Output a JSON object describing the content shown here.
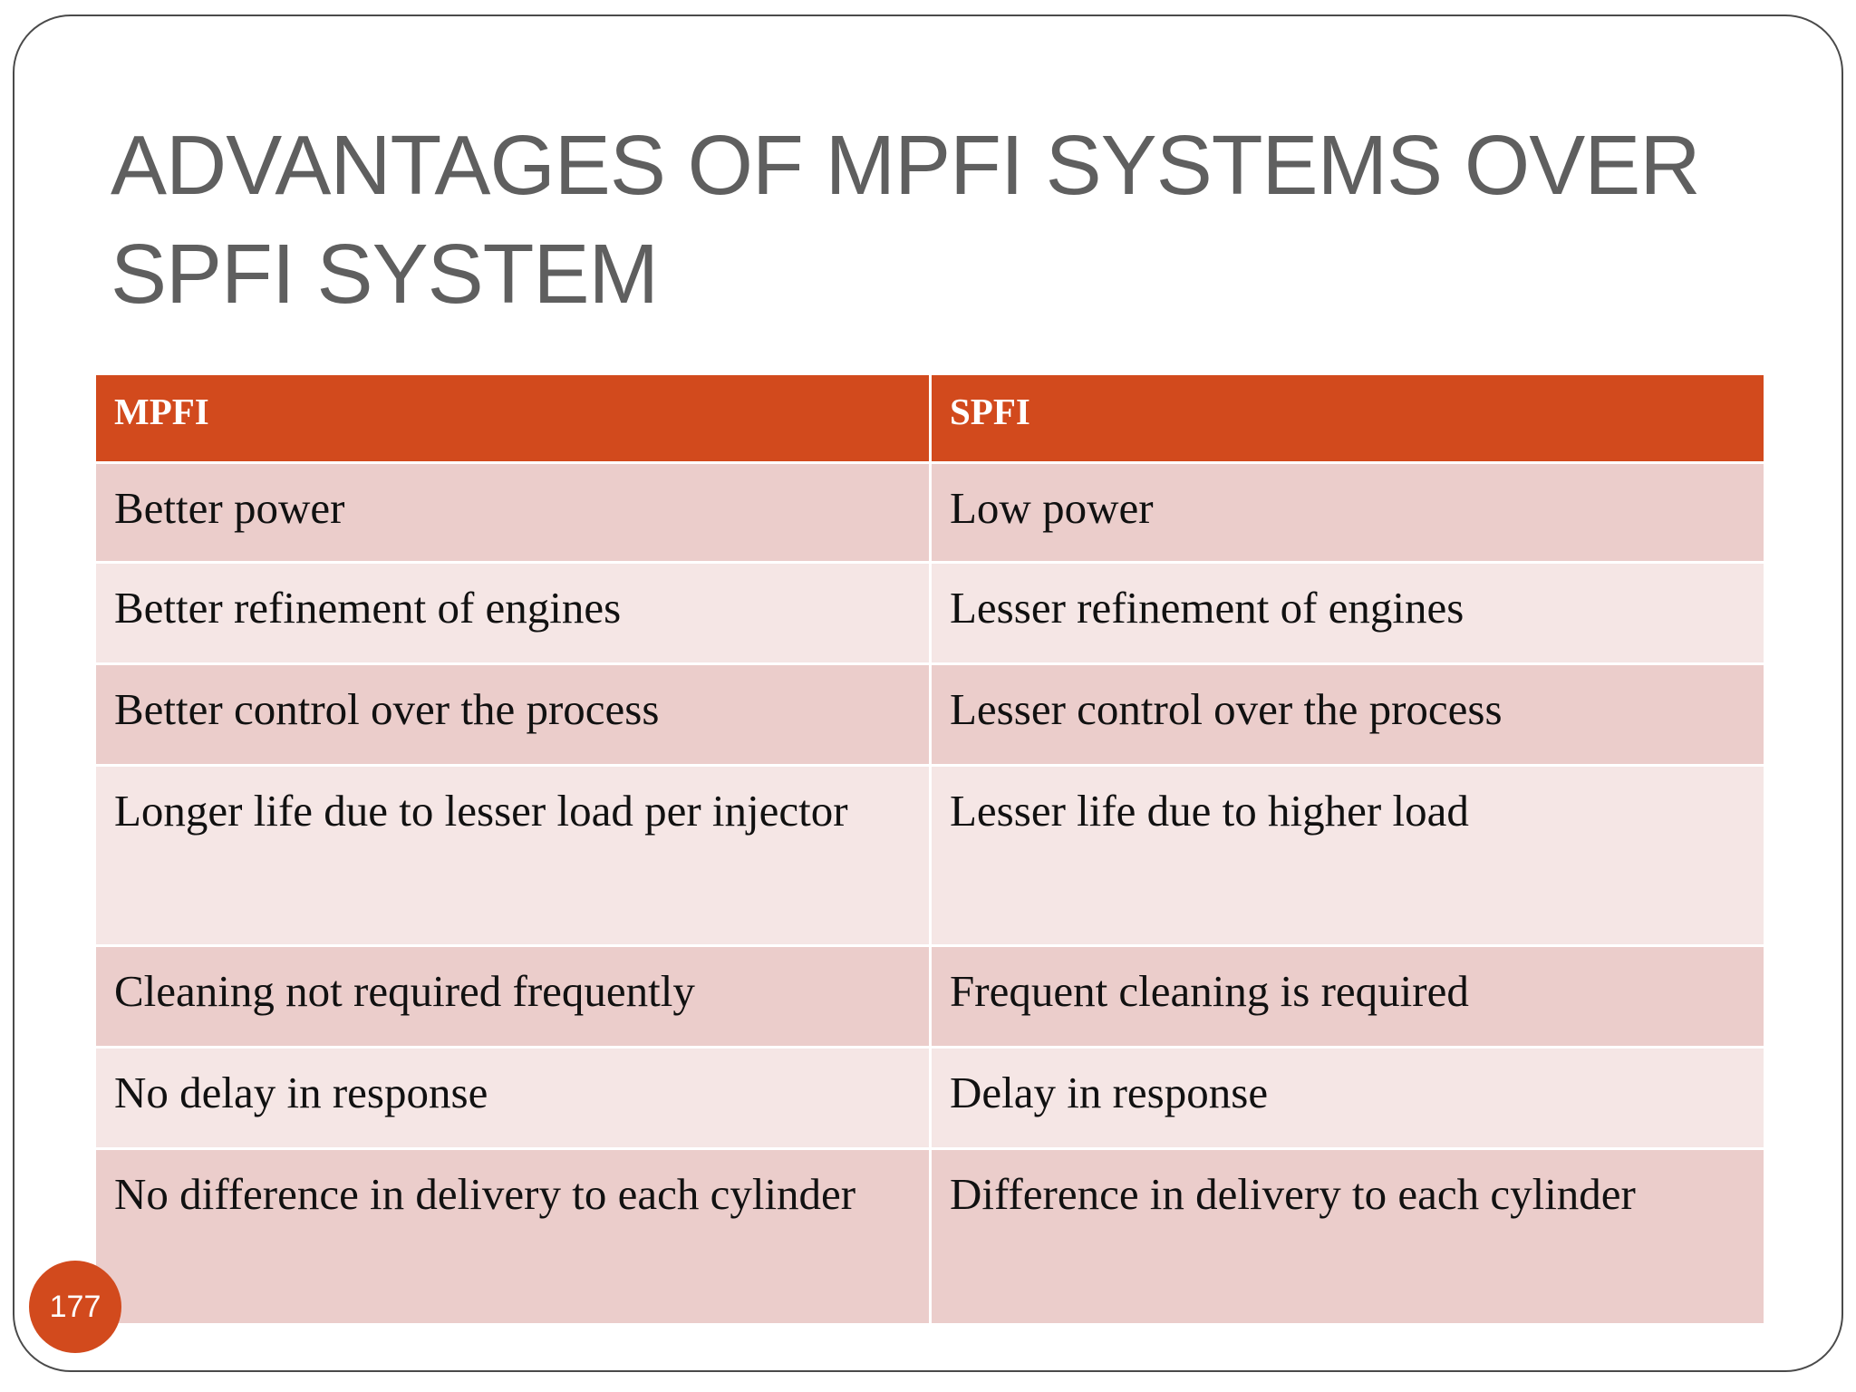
{
  "slide": {
    "title": "ADVANTAGES OF MPFI SYSTEMS OVER SPFI SYSTEM",
    "page_number": "177"
  },
  "table": {
    "headers": [
      "MPFI",
      "SPFI"
    ],
    "rows": [
      [
        "Better power",
        "Low power"
      ],
      [
        "Better refinement of engines",
        "Lesser refinement of engines"
      ],
      [
        "Better control over the process",
        "Lesser control over the process"
      ],
      [
        "Longer life due to lesser load per injector",
        "Lesser life due to higher load"
      ],
      [
        "Cleaning not required frequently",
        "Frequent cleaning is required"
      ],
      [
        "No delay in response",
        "Delay in response"
      ],
      [
        "No difference in delivery to each cylinder",
        "Difference in delivery to each cylinder"
      ]
    ]
  },
  "colors": {
    "accent": "#d24a1d",
    "row_dark": "#ebcdcb",
    "row_light": "#f5e6e5",
    "title_text": "#5f5f5f"
  }
}
